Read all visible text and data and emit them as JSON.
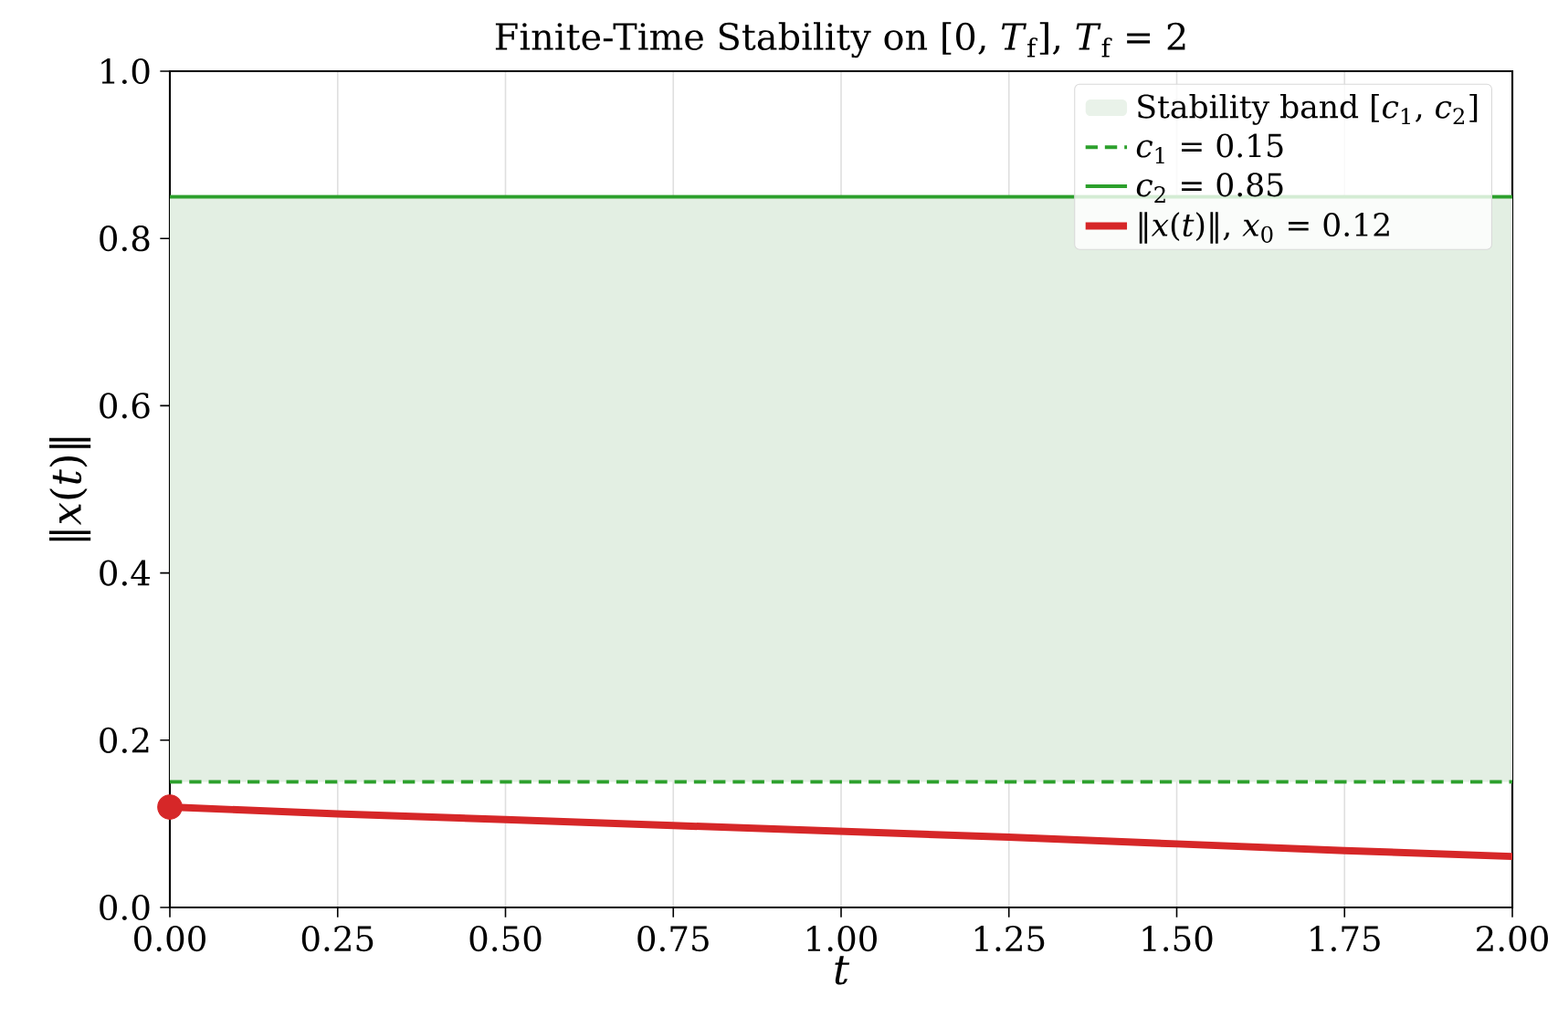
{
  "chart_data": {
    "type": "line",
    "title": "Finite-Time Stability on [0, *T*$_{f}$], *T*$_{f}$ = 2",
    "xlabel": "t",
    "ylabel": "‖*x*(*t*)‖",
    "x": [
      0,
      0.25,
      0.5,
      0.75,
      1.0,
      1.25,
      1.5,
      1.75,
      2.0
    ],
    "series": [
      {
        "name": "‖*x*(*t*)‖, *x*$_{0}$ = 0.12",
        "color": "#d62728",
        "values": [
          0.12,
          0.112,
          0.105,
          0.098,
          0.091,
          0.084,
          0.076,
          0.068,
          0.061
        ]
      },
      {
        "type": "scatter",
        "color": "#d62728",
        "x": [
          0
        ],
        "values": [
          0.12
        ],
        "marker": "circle"
      }
    ],
    "bands": [
      {
        "axis": "y",
        "from": 0.15,
        "to": 0.85,
        "label": "Stability band [*c*$_{1}$, *c*$_{2}$]",
        "color": "#e3efe3"
      }
    ],
    "ref_lines": [
      {
        "axis": "y",
        "value": 0.15,
        "label": "*c*$_{1}$ = 0.15",
        "color": "#2ca02c",
        "line_style": "dashed"
      },
      {
        "axis": "y",
        "value": 0.85,
        "label": "*c*$_{2}$ = 0.85",
        "color": "#2ca02c",
        "line_style": "solid"
      }
    ],
    "xlim": [
      0,
      2
    ],
    "ylim": [
      0,
      1
    ],
    "xticks": [
      {
        "value": 0,
        "label": "0.00"
      },
      {
        "value": 0.25,
        "label": "0.25"
      },
      {
        "value": 0.5,
        "label": "0.50"
      },
      {
        "value": 0.75,
        "label": "0.75"
      },
      {
        "value": 1,
        "label": "1.00"
      },
      {
        "value": 1.25,
        "label": "1.25"
      },
      {
        "value": 1.5,
        "label": "1.50"
      },
      {
        "value": 1.75,
        "label": "1.75"
      },
      {
        "value": 2,
        "label": "2.00"
      }
    ],
    "yticks": [
      {
        "value": 0,
        "label": "0.0"
      },
      {
        "value": 0.2,
        "label": "0.2"
      },
      {
        "value": 0.4,
        "label": "0.4"
      },
      {
        "value": 0.6,
        "label": "0.6"
      },
      {
        "value": 0.8,
        "label": "0.8"
      },
      {
        "value": 1,
        "label": "1.0"
      }
    ],
    "grid": true,
    "legend": "top right"
  }
}
